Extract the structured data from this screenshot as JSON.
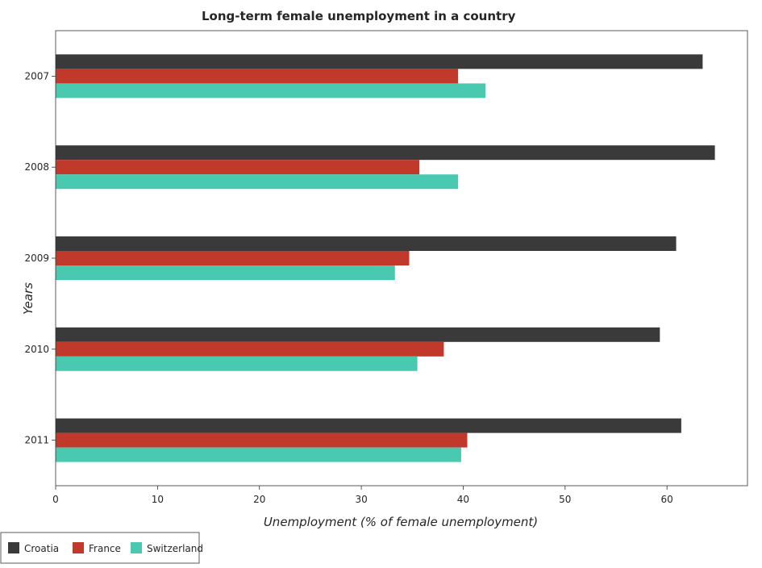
{
  "chart_data": {
    "type": "bar",
    "orientation": "horizontal",
    "title": "Long-term female unemployment in a country",
    "xlabel": "Unemployment (% of female unemployment)",
    "ylabel": "Years",
    "categories": [
      "2007",
      "2008",
      "2009",
      "2010",
      "2011"
    ],
    "xlim": [
      0,
      67.9
    ],
    "xticks": [
      0,
      10,
      20,
      30,
      40,
      50,
      60
    ],
    "xtick_labels": [
      "0",
      "10",
      "20",
      "30",
      "40",
      "50",
      "60"
    ],
    "series": [
      {
        "name": "Croatia",
        "color": "#3a3a3a",
        "values": [
          63.5,
          64.7,
          60.9,
          59.3,
          61.4
        ]
      },
      {
        "name": "France",
        "color": "#c0392b",
        "values": [
          39.5,
          35.7,
          34.7,
          38.1,
          40.4
        ]
      },
      {
        "name": "Switzerland",
        "color": "#48c9b0",
        "values": [
          42.2,
          39.5,
          33.3,
          35.5,
          39.8
        ]
      }
    ],
    "legend_position": "bottom-left",
    "grid": false
  }
}
